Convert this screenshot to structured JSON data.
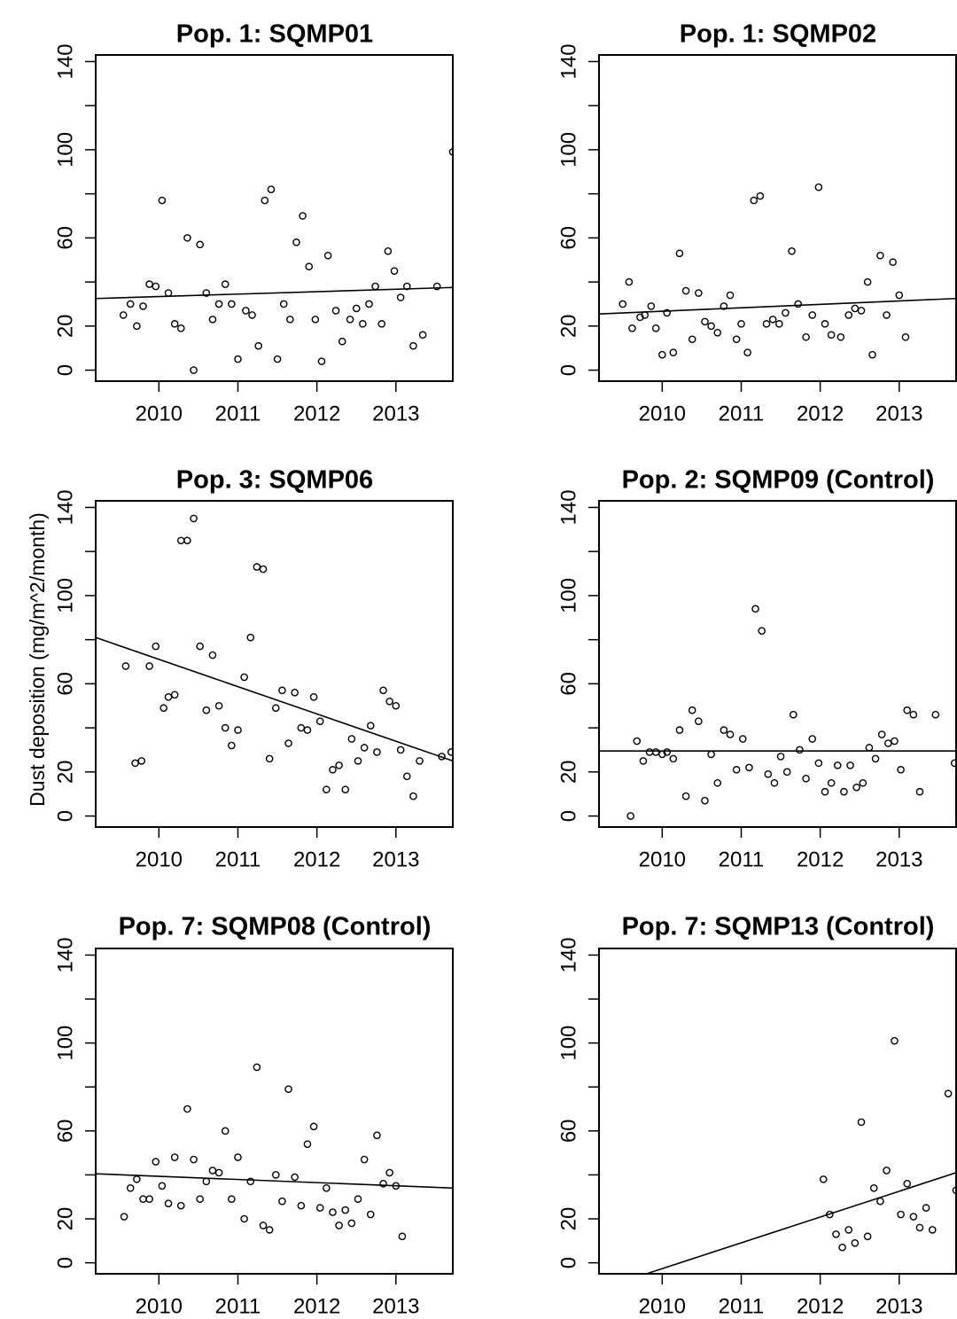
{
  "figure": {
    "ylabel": "Dust deposition (mg/m^2/month)"
  },
  "chart_data": [
    {
      "type": "scatter",
      "title": "Pop. 1: SQMP01",
      "xlim": [
        2009.2,
        2013.72
      ],
      "ylim": [
        -5,
        143
      ],
      "xticks": [
        "2010",
        "2011",
        "2012",
        "2013"
      ],
      "yticks": [
        "0",
        "20",
        "60",
        "100",
        "140"
      ],
      "trend": {
        "x": [
          2009.2,
          2013.72
        ],
        "y": [
          32.5,
          37.5
        ]
      },
      "points": [
        {
          "x": 2009.55,
          "y": 25
        },
        {
          "x": 2009.64,
          "y": 30
        },
        {
          "x": 2009.72,
          "y": 20
        },
        {
          "x": 2009.8,
          "y": 29
        },
        {
          "x": 2009.88,
          "y": 39
        },
        {
          "x": 2009.96,
          "y": 38
        },
        {
          "x": 2010.04,
          "y": 77
        },
        {
          "x": 2010.12,
          "y": 35
        },
        {
          "x": 2010.2,
          "y": 21
        },
        {
          "x": 2010.28,
          "y": 19
        },
        {
          "x": 2010.36,
          "y": 60
        },
        {
          "x": 2010.44,
          "y": 0
        },
        {
          "x": 2010.52,
          "y": 57
        },
        {
          "x": 2010.6,
          "y": 35
        },
        {
          "x": 2010.68,
          "y": 23
        },
        {
          "x": 2010.76,
          "y": 30
        },
        {
          "x": 2010.84,
          "y": 39
        },
        {
          "x": 2010.92,
          "y": 30
        },
        {
          "x": 2011.0,
          "y": 5
        },
        {
          "x": 2011.1,
          "y": 27
        },
        {
          "x": 2011.18,
          "y": 25
        },
        {
          "x": 2011.26,
          "y": 11
        },
        {
          "x": 2011.34,
          "y": 77
        },
        {
          "x": 2011.42,
          "y": 82
        },
        {
          "x": 2011.5,
          "y": 5
        },
        {
          "x": 2011.58,
          "y": 30
        },
        {
          "x": 2011.66,
          "y": 23
        },
        {
          "x": 2011.74,
          "y": 58
        },
        {
          "x": 2011.82,
          "y": 70
        },
        {
          "x": 2011.9,
          "y": 47
        },
        {
          "x": 2011.98,
          "y": 23
        },
        {
          "x": 2012.06,
          "y": 4
        },
        {
          "x": 2012.14,
          "y": 52
        },
        {
          "x": 2012.24,
          "y": 27
        },
        {
          "x": 2012.32,
          "y": 13
        },
        {
          "x": 2012.42,
          "y": 23
        },
        {
          "x": 2012.5,
          "y": 28
        },
        {
          "x": 2012.58,
          "y": 21
        },
        {
          "x": 2012.66,
          "y": 30
        },
        {
          "x": 2012.74,
          "y": 38
        },
        {
          "x": 2012.82,
          "y": 21
        },
        {
          "x": 2012.9,
          "y": 54
        },
        {
          "x": 2012.98,
          "y": 45
        },
        {
          "x": 2013.06,
          "y": 33
        },
        {
          "x": 2013.14,
          "y": 38
        },
        {
          "x": 2013.22,
          "y": 11
        },
        {
          "x": 2013.34,
          "y": 16
        },
        {
          "x": 2013.52,
          "y": 38
        },
        {
          "x": 2013.72,
          "y": 99
        }
      ]
    },
    {
      "type": "scatter",
      "title": "Pop. 1: SQMP02",
      "xlim": [
        2009.2,
        2013.72
      ],
      "ylim": [
        -5,
        143
      ],
      "xticks": [
        "2010",
        "2011",
        "2012",
        "2013"
      ],
      "yticks": [
        "0",
        "20",
        "60",
        "100",
        "140"
      ],
      "trend": {
        "x": [
          2009.2,
          2013.72
        ],
        "y": [
          25.5,
          32.5
        ]
      },
      "points": [
        {
          "x": 2009.5,
          "y": 30
        },
        {
          "x": 2009.58,
          "y": 40
        },
        {
          "x": 2009.62,
          "y": 19
        },
        {
          "x": 2009.72,
          "y": 24
        },
        {
          "x": 2009.78,
          "y": 25
        },
        {
          "x": 2009.86,
          "y": 29
        },
        {
          "x": 2009.92,
          "y": 19
        },
        {
          "x": 2010.0,
          "y": 7
        },
        {
          "x": 2010.06,
          "y": 26
        },
        {
          "x": 2010.14,
          "y": 8
        },
        {
          "x": 2010.22,
          "y": 53
        },
        {
          "x": 2010.3,
          "y": 36
        },
        {
          "x": 2010.38,
          "y": 14
        },
        {
          "x": 2010.46,
          "y": 35
        },
        {
          "x": 2010.54,
          "y": 22
        },
        {
          "x": 2010.62,
          "y": 20
        },
        {
          "x": 2010.7,
          "y": 17
        },
        {
          "x": 2010.78,
          "y": 29
        },
        {
          "x": 2010.86,
          "y": 34
        },
        {
          "x": 2010.94,
          "y": 14
        },
        {
          "x": 2011.0,
          "y": 21
        },
        {
          "x": 2011.08,
          "y": 8
        },
        {
          "x": 2011.16,
          "y": 77
        },
        {
          "x": 2011.24,
          "y": 79
        },
        {
          "x": 2011.32,
          "y": 21
        },
        {
          "x": 2011.4,
          "y": 23
        },
        {
          "x": 2011.48,
          "y": 21
        },
        {
          "x": 2011.56,
          "y": 26
        },
        {
          "x": 2011.64,
          "y": 54
        },
        {
          "x": 2011.72,
          "y": 30
        },
        {
          "x": 2011.82,
          "y": 15
        },
        {
          "x": 2011.9,
          "y": 25
        },
        {
          "x": 2011.98,
          "y": 83
        },
        {
          "x": 2012.06,
          "y": 21
        },
        {
          "x": 2012.14,
          "y": 16
        },
        {
          "x": 2012.26,
          "y": 15
        },
        {
          "x": 2012.36,
          "y": 25
        },
        {
          "x": 2012.44,
          "y": 28
        },
        {
          "x": 2012.52,
          "y": 27
        },
        {
          "x": 2012.6,
          "y": 40
        },
        {
          "x": 2012.66,
          "y": 7
        },
        {
          "x": 2012.76,
          "y": 52
        },
        {
          "x": 2012.84,
          "y": 25
        },
        {
          "x": 2012.92,
          "y": 49
        },
        {
          "x": 2013.0,
          "y": 34
        },
        {
          "x": 2013.08,
          "y": 15
        }
      ]
    },
    {
      "type": "scatter",
      "title": "Pop. 3: SQMP06",
      "xlim": [
        2009.2,
        2013.72
      ],
      "ylim": [
        -5,
        143
      ],
      "xticks": [
        "2010",
        "2011",
        "2012",
        "2013"
      ],
      "yticks": [
        "0",
        "20",
        "60",
        "100",
        "140"
      ],
      "trend": {
        "x": [
          2009.2,
          2013.72
        ],
        "y": [
          81,
          25
        ]
      },
      "points": [
        {
          "x": 2009.58,
          "y": 68
        },
        {
          "x": 2009.7,
          "y": 24
        },
        {
          "x": 2009.78,
          "y": 25
        },
        {
          "x": 2009.88,
          "y": 68
        },
        {
          "x": 2009.96,
          "y": 77
        },
        {
          "x": 2010.06,
          "y": 49
        },
        {
          "x": 2010.12,
          "y": 54
        },
        {
          "x": 2010.2,
          "y": 55
        },
        {
          "x": 2010.28,
          "y": 125
        },
        {
          "x": 2010.36,
          "y": 125
        },
        {
          "x": 2010.44,
          "y": 135
        },
        {
          "x": 2010.52,
          "y": 77
        },
        {
          "x": 2010.6,
          "y": 48
        },
        {
          "x": 2010.68,
          "y": 73
        },
        {
          "x": 2010.76,
          "y": 50
        },
        {
          "x": 2010.84,
          "y": 40
        },
        {
          "x": 2010.92,
          "y": 32
        },
        {
          "x": 2011.0,
          "y": 39
        },
        {
          "x": 2011.08,
          "y": 63
        },
        {
          "x": 2011.16,
          "y": 81
        },
        {
          "x": 2011.24,
          "y": 113
        },
        {
          "x": 2011.32,
          "y": 112
        },
        {
          "x": 2011.4,
          "y": 26
        },
        {
          "x": 2011.48,
          "y": 49
        },
        {
          "x": 2011.56,
          "y": 57
        },
        {
          "x": 2011.64,
          "y": 33
        },
        {
          "x": 2011.72,
          "y": 56
        },
        {
          "x": 2011.8,
          "y": 40
        },
        {
          "x": 2011.88,
          "y": 39
        },
        {
          "x": 2011.96,
          "y": 54
        },
        {
          "x": 2012.04,
          "y": 43
        },
        {
          "x": 2012.12,
          "y": 12
        },
        {
          "x": 2012.2,
          "y": 21
        },
        {
          "x": 2012.28,
          "y": 23
        },
        {
          "x": 2012.36,
          "y": 12
        },
        {
          "x": 2012.44,
          "y": 35
        },
        {
          "x": 2012.52,
          "y": 25
        },
        {
          "x": 2012.6,
          "y": 31
        },
        {
          "x": 2012.68,
          "y": 41
        },
        {
          "x": 2012.76,
          "y": 29
        },
        {
          "x": 2012.84,
          "y": 57
        },
        {
          "x": 2012.92,
          "y": 52
        },
        {
          "x": 2013.0,
          "y": 50
        },
        {
          "x": 2013.06,
          "y": 30
        },
        {
          "x": 2013.14,
          "y": 18
        },
        {
          "x": 2013.22,
          "y": 9
        },
        {
          "x": 2013.3,
          "y": 25
        },
        {
          "x": 2013.58,
          "y": 27
        },
        {
          "x": 2013.7,
          "y": 29
        }
      ]
    },
    {
      "type": "scatter",
      "title": "Pop. 2: SQMP09 (Control)",
      "xlim": [
        2009.2,
        2013.72
      ],
      "ylim": [
        -5,
        143
      ],
      "xticks": [
        "2010",
        "2011",
        "2012",
        "2013"
      ],
      "yticks": [
        "0",
        "20",
        "60",
        "100",
        "140"
      ],
      "trend": {
        "x": [
          2009.2,
          2013.72
        ],
        "y": [
          29.5,
          29.5
        ]
      },
      "points": [
        {
          "x": 2009.6,
          "y": 0
        },
        {
          "x": 2009.68,
          "y": 34
        },
        {
          "x": 2009.76,
          "y": 25
        },
        {
          "x": 2009.84,
          "y": 29
        },
        {
          "x": 2009.92,
          "y": 29
        },
        {
          "x": 2010.0,
          "y": 28
        },
        {
          "x": 2010.06,
          "y": 29
        },
        {
          "x": 2010.14,
          "y": 26
        },
        {
          "x": 2010.22,
          "y": 39
        },
        {
          "x": 2010.3,
          "y": 9
        },
        {
          "x": 2010.38,
          "y": 48
        },
        {
          "x": 2010.46,
          "y": 43
        },
        {
          "x": 2010.54,
          "y": 7
        },
        {
          "x": 2010.62,
          "y": 28
        },
        {
          "x": 2010.7,
          "y": 15
        },
        {
          "x": 2010.78,
          "y": 39
        },
        {
          "x": 2010.86,
          "y": 37
        },
        {
          "x": 2010.94,
          "y": 21
        },
        {
          "x": 2011.02,
          "y": 35
        },
        {
          "x": 2011.1,
          "y": 22
        },
        {
          "x": 2011.18,
          "y": 94
        },
        {
          "x": 2011.26,
          "y": 84
        },
        {
          "x": 2011.34,
          "y": 19
        },
        {
          "x": 2011.42,
          "y": 15
        },
        {
          "x": 2011.5,
          "y": 27
        },
        {
          "x": 2011.58,
          "y": 20
        },
        {
          "x": 2011.66,
          "y": 46
        },
        {
          "x": 2011.74,
          "y": 30
        },
        {
          "x": 2011.82,
          "y": 17
        },
        {
          "x": 2011.9,
          "y": 35
        },
        {
          "x": 2011.98,
          "y": 24
        },
        {
          "x": 2012.06,
          "y": 11
        },
        {
          "x": 2012.14,
          "y": 15
        },
        {
          "x": 2012.22,
          "y": 23
        },
        {
          "x": 2012.3,
          "y": 11
        },
        {
          "x": 2012.38,
          "y": 23
        },
        {
          "x": 2012.46,
          "y": 13
        },
        {
          "x": 2012.54,
          "y": 15
        },
        {
          "x": 2012.62,
          "y": 31
        },
        {
          "x": 2012.7,
          "y": 26
        },
        {
          "x": 2012.78,
          "y": 37
        },
        {
          "x": 2012.86,
          "y": 33
        },
        {
          "x": 2012.94,
          "y": 34
        },
        {
          "x": 2013.02,
          "y": 21
        },
        {
          "x": 2013.1,
          "y": 48
        },
        {
          "x": 2013.18,
          "y": 46
        },
        {
          "x": 2013.26,
          "y": 11
        },
        {
          "x": 2013.46,
          "y": 46
        },
        {
          "x": 2013.7,
          "y": 24
        }
      ]
    },
    {
      "type": "scatter",
      "title": "Pop. 7: SQMP08 (Control)",
      "xlim": [
        2009.2,
        2013.72
      ],
      "ylim": [
        -5,
        143
      ],
      "xticks": [
        "2010",
        "2011",
        "2012",
        "2013"
      ],
      "yticks": [
        "0",
        "20",
        "60",
        "100",
        "140"
      ],
      "trend": {
        "x": [
          2009.2,
          2013.72
        ],
        "y": [
          40.5,
          34
        ]
      },
      "points": [
        {
          "x": 2009.56,
          "y": 21
        },
        {
          "x": 2009.64,
          "y": 34
        },
        {
          "x": 2009.72,
          "y": 38
        },
        {
          "x": 2009.8,
          "y": 29
        },
        {
          "x": 2009.88,
          "y": 29
        },
        {
          "x": 2009.96,
          "y": 46
        },
        {
          "x": 2010.04,
          "y": 35
        },
        {
          "x": 2010.12,
          "y": 27
        },
        {
          "x": 2010.2,
          "y": 48
        },
        {
          "x": 2010.28,
          "y": 26
        },
        {
          "x": 2010.36,
          "y": 70
        },
        {
          "x": 2010.44,
          "y": 47
        },
        {
          "x": 2010.52,
          "y": 29
        },
        {
          "x": 2010.6,
          "y": 37
        },
        {
          "x": 2010.68,
          "y": 42
        },
        {
          "x": 2010.76,
          "y": 41
        },
        {
          "x": 2010.84,
          "y": 60
        },
        {
          "x": 2010.92,
          "y": 29
        },
        {
          "x": 2011.0,
          "y": 48
        },
        {
          "x": 2011.08,
          "y": 20
        },
        {
          "x": 2011.16,
          "y": 37
        },
        {
          "x": 2011.24,
          "y": 89
        },
        {
          "x": 2011.32,
          "y": 17
        },
        {
          "x": 2011.4,
          "y": 15
        },
        {
          "x": 2011.48,
          "y": 40
        },
        {
          "x": 2011.56,
          "y": 28
        },
        {
          "x": 2011.64,
          "y": 79
        },
        {
          "x": 2011.72,
          "y": 39
        },
        {
          "x": 2011.8,
          "y": 26
        },
        {
          "x": 2011.88,
          "y": 54
        },
        {
          "x": 2011.96,
          "y": 62
        },
        {
          "x": 2012.04,
          "y": 25
        },
        {
          "x": 2012.12,
          "y": 34
        },
        {
          "x": 2012.2,
          "y": 23
        },
        {
          "x": 2012.28,
          "y": 17
        },
        {
          "x": 2012.36,
          "y": 24
        },
        {
          "x": 2012.44,
          "y": 18
        },
        {
          "x": 2012.52,
          "y": 29
        },
        {
          "x": 2012.6,
          "y": 47
        },
        {
          "x": 2012.68,
          "y": 22
        },
        {
          "x": 2012.76,
          "y": 58
        },
        {
          "x": 2012.84,
          "y": 36
        },
        {
          "x": 2012.92,
          "y": 41
        },
        {
          "x": 2013.0,
          "y": 35
        },
        {
          "x": 2013.08,
          "y": 12
        }
      ]
    },
    {
      "type": "scatter",
      "title": "Pop. 7: SQMP13 (Control)",
      "xlim": [
        2009.2,
        2013.72
      ],
      "ylim": [
        -5,
        143
      ],
      "xticks": [
        "2010",
        "2011",
        "2012",
        "2013"
      ],
      "yticks": [
        "0",
        "20",
        "60",
        "100",
        "140"
      ],
      "trend": {
        "x": [
          2009.8,
          2013.72
        ],
        "y": [
          -5,
          41
        ]
      },
      "points": [
        {
          "x": 2012.04,
          "y": 38
        },
        {
          "x": 2012.12,
          "y": 22
        },
        {
          "x": 2012.2,
          "y": 13
        },
        {
          "x": 2012.28,
          "y": 7
        },
        {
          "x": 2012.36,
          "y": 15
        },
        {
          "x": 2012.44,
          "y": 9
        },
        {
          "x": 2012.52,
          "y": 64
        },
        {
          "x": 2012.6,
          "y": 12
        },
        {
          "x": 2012.68,
          "y": 34
        },
        {
          "x": 2012.76,
          "y": 28
        },
        {
          "x": 2012.84,
          "y": 42
        },
        {
          "x": 2012.94,
          "y": 101
        },
        {
          "x": 2013.02,
          "y": 22
        },
        {
          "x": 2013.1,
          "y": 36
        },
        {
          "x": 2013.18,
          "y": 21
        },
        {
          "x": 2013.26,
          "y": 16
        },
        {
          "x": 2013.34,
          "y": 25
        },
        {
          "x": 2013.42,
          "y": 15
        },
        {
          "x": 2013.62,
          "y": 77
        },
        {
          "x": 2013.72,
          "y": 33
        }
      ]
    }
  ]
}
